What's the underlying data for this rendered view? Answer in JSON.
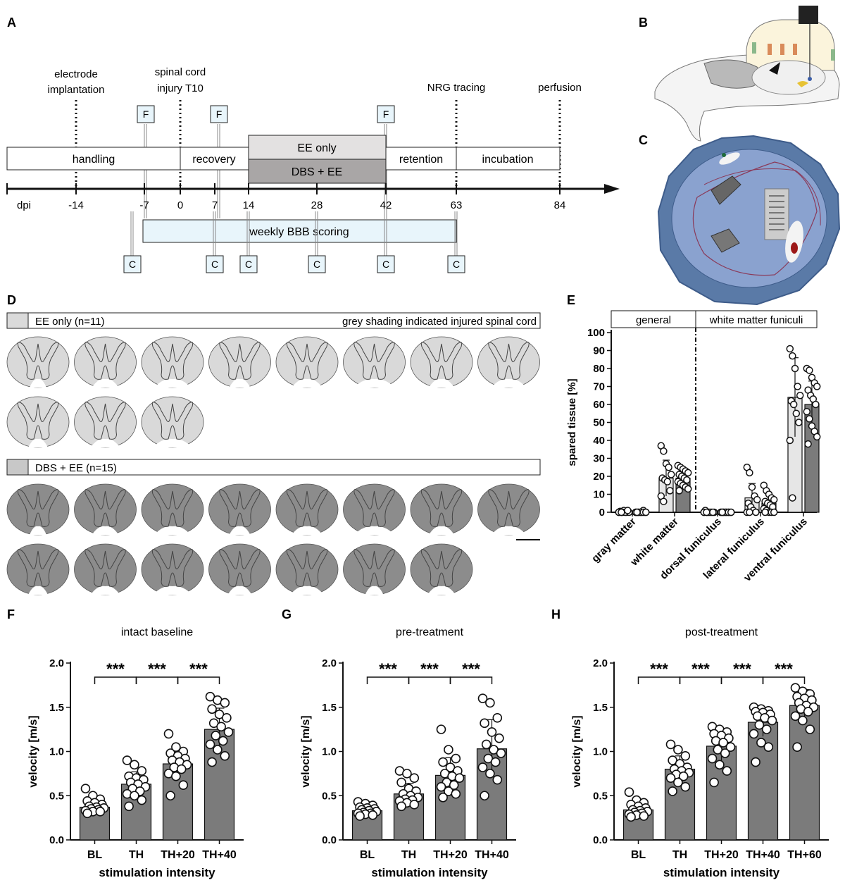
{
  "panel_labels": {
    "a": "A",
    "b": "B",
    "c": "C",
    "d": "D",
    "e": "E",
    "f": "F",
    "g": "G",
    "h": "H"
  },
  "colors": {
    "light_bar": "#e6e6e6",
    "dark_bar": "#7b7b7b",
    "timeline_blue": "#e8f5fb",
    "arena_blue": "#5a7aa7",
    "section_light": "#dadada",
    "section_dark": "#8a8a8a"
  },
  "timeline": {
    "events": [
      {
        "label_lines": [
          "electrode",
          "implantation"
        ],
        "day": -14
      },
      {
        "label_lines": [
          "spinal cord",
          "injury T10"
        ],
        "day": 0
      },
      {
        "label_lines": [
          "NRG tracing"
        ],
        "day": 63
      },
      {
        "label_lines": [
          "perfusion"
        ],
        "day": 84
      }
    ],
    "phases": {
      "handling": "handling",
      "recovery": "recovery",
      "ee_only": "EE only",
      "dbs_ee": "DBS + EE",
      "retention": "retention",
      "incubation": "incubation"
    },
    "axis_label": "dpi",
    "ticks": [
      "-14",
      "-7",
      "0",
      "7",
      "14",
      "28",
      "42",
      "63",
      "84"
    ],
    "f_marker": "F",
    "c_marker": "C",
    "bbb_label": "weekly BBB scoring"
  },
  "panel_d": {
    "group1": {
      "label": "EE only (n=11)",
      "note": "grey shading indicated injured spinal cord",
      "count": 11
    },
    "group2": {
      "label": "DBS + EE (n=15)",
      "count": 15
    }
  },
  "chart_data": [
    {
      "panel": "E",
      "type": "bar",
      "ylabel": "spared tissue [%]",
      "ylim": [
        0,
        100
      ],
      "yticks": [
        "0",
        "10",
        "20",
        "30",
        "40",
        "50",
        "60",
        "70",
        "80",
        "90",
        "100"
      ],
      "header_left": "general",
      "header_right": "white matter funiculi",
      "categories": [
        "gray matter",
        "white matter",
        "dorsal funiculus",
        "lateral funiculus",
        "ventral funiculus"
      ],
      "series": [
        {
          "values": [
            0.3,
            19,
            0.2,
            8,
            64
          ],
          "sd": [
            0.5,
            10,
            0.3,
            8,
            22
          ],
          "points": [
            [
              0,
              0,
              1,
              0,
              0,
              0.5,
              0,
              0,
              1,
              0,
              0
            ],
            [
              37,
              34,
              27,
              25,
              21,
              19,
              18,
              17,
              12,
              9,
              6
            ],
            [
              0,
              0,
              0,
              0,
              0,
              1,
              0,
              0,
              0,
              0,
              0
            ],
            [
              25,
              22,
              14,
              9,
              7,
              5,
              3,
              1,
              0,
              0,
              0
            ],
            [
              91,
              87,
              80,
              70,
              65,
              62,
              60,
              55,
              50,
              40,
              8
            ]
          ]
        },
        {
          "values": [
            0.3,
            19,
            0.2,
            5,
            60
          ],
          "sd": [
            0.5,
            4,
            0.3,
            5,
            13
          ],
          "points": [
            [
              0,
              0,
              0,
              1,
              0,
              0,
              0,
              0,
              0,
              0,
              0,
              0,
              0,
              0,
              0
            ],
            [
              26,
              25,
              24,
              23,
              22,
              21,
              20,
              19,
              18,
              17,
              16,
              15,
              14,
              13,
              12
            ],
            [
              0,
              0,
              0,
              0,
              0,
              0,
              0,
              0,
              0,
              0,
              0,
              0,
              0,
              0,
              0
            ],
            [
              15,
              12,
              10,
              8,
              7,
              6,
              5,
              4,
              3,
              2,
              1,
              0,
              0,
              0,
              0
            ],
            [
              80,
              79,
              75,
              72,
              70,
              68,
              65,
              63,
              60,
              56,
              52,
              48,
              45,
              42,
              38
            ]
          ]
        }
      ]
    },
    {
      "panel": "F",
      "title": "intact baseline",
      "type": "bar",
      "xlabel": "stimulation intensity",
      "ylabel": "velocity [m/s]",
      "ylim": [
        0,
        2.0
      ],
      "yticks": [
        "0.0",
        "0.5",
        "1.0",
        "1.5",
        "2.0"
      ],
      "categories": [
        "BL",
        "TH",
        "TH+20",
        "TH+40"
      ],
      "values": [
        0.37,
        0.63,
        0.86,
        1.25
      ],
      "sd": [
        0.07,
        0.14,
        0.15,
        0.24
      ],
      "points": [
        [
          0.58,
          0.5,
          0.46,
          0.44,
          0.42,
          0.4,
          0.38,
          0.37,
          0.36,
          0.35,
          0.34,
          0.33,
          0.32,
          0.32,
          0.3
        ],
        [
          0.9,
          0.85,
          0.78,
          0.72,
          0.7,
          0.68,
          0.65,
          0.63,
          0.6,
          0.58,
          0.55,
          0.52,
          0.5,
          0.45,
          0.38
        ],
        [
          1.2,
          1.05,
          1.0,
          0.98,
          0.95,
          0.92,
          0.9,
          0.88,
          0.85,
          0.82,
          0.8,
          0.75,
          0.72,
          0.62,
          0.5
        ],
        [
          1.62,
          1.58,
          1.55,
          1.48,
          1.42,
          1.38,
          1.32,
          1.28,
          1.22,
          1.18,
          1.12,
          1.08,
          1.02,
          0.95,
          0.88
        ]
      ],
      "significance": [
        {
          "from": 0,
          "to": 1,
          "label": "***"
        },
        {
          "from": 1,
          "to": 2,
          "label": "***"
        },
        {
          "from": 2,
          "to": 3,
          "label": "***"
        }
      ]
    },
    {
      "panel": "G",
      "title": "pre-treatment",
      "type": "bar",
      "xlabel": "stimulation intensity",
      "ylabel": "velocity [m/s]",
      "ylim": [
        0,
        2.0
      ],
      "yticks": [
        "0.0",
        "0.5",
        "1.0",
        "1.5",
        "2.0"
      ],
      "categories": [
        "BL",
        "TH",
        "TH+20",
        "TH+40"
      ],
      "values": [
        0.33,
        0.52,
        0.73,
        1.03
      ],
      "sd": [
        0.04,
        0.12,
        0.2,
        0.33
      ],
      "points": [
        [
          0.43,
          0.41,
          0.39,
          0.37,
          0.36,
          0.35,
          0.34,
          0.33,
          0.32,
          0.31,
          0.3,
          0.3,
          0.29,
          0.28,
          0.27
        ],
        [
          0.78,
          0.75,
          0.7,
          0.65,
          0.58,
          0.55,
          0.52,
          0.5,
          0.48,
          0.46,
          0.45,
          0.44,
          0.42,
          0.4,
          0.38
        ],
        [
          1.25,
          1.02,
          0.92,
          0.88,
          0.82,
          0.78,
          0.75,
          0.72,
          0.7,
          0.65,
          0.62,
          0.6,
          0.55,
          0.52,
          0.48
        ],
        [
          1.6,
          1.55,
          1.38,
          1.32,
          1.22,
          1.15,
          1.08,
          1.02,
          0.98,
          0.92,
          0.88,
          0.82,
          0.75,
          0.68,
          0.5
        ]
      ],
      "significance": [
        {
          "from": 0,
          "to": 1,
          "label": "***"
        },
        {
          "from": 1,
          "to": 2,
          "label": "***"
        },
        {
          "from": 2,
          "to": 3,
          "label": "***"
        }
      ]
    },
    {
      "panel": "H",
      "title": "post-treatment",
      "type": "bar",
      "xlabel": "stimulation intensity",
      "ylabel": "velocity [m/s]",
      "ylim": [
        0,
        2.0
      ],
      "yticks": [
        "0.0",
        "0.5",
        "1.0",
        "1.5",
        "2.0"
      ],
      "categories": [
        "BL",
        "TH",
        "TH+20",
        "TH+40",
        "TH+60"
      ],
      "values": [
        0.34,
        0.8,
        1.06,
        1.33,
        1.52
      ],
      "sd": [
        0.06,
        0.15,
        0.18,
        0.16,
        0.18
      ],
      "points": [
        [
          0.54,
          0.45,
          0.42,
          0.4,
          0.38,
          0.36,
          0.34,
          0.33,
          0.32,
          0.31,
          0.3,
          0.29,
          0.28,
          0.27,
          0.26
        ],
        [
          1.08,
          1.02,
          0.95,
          0.9,
          0.86,
          0.82,
          0.8,
          0.78,
          0.76,
          0.74,
          0.72,
          0.7,
          0.65,
          0.6,
          0.55
        ],
        [
          1.28,
          1.25,
          1.22,
          1.2,
          1.18,
          1.15,
          1.12,
          1.1,
          1.05,
          1.02,
          0.98,
          0.92,
          0.85,
          0.78,
          0.65
        ],
        [
          1.5,
          1.48,
          1.46,
          1.45,
          1.44,
          1.42,
          1.4,
          1.38,
          1.35,
          1.3,
          1.25,
          1.2,
          1.1,
          1.05,
          0.88
        ],
        [
          1.72,
          1.68,
          1.65,
          1.62,
          1.6,
          1.58,
          1.55,
          1.52,
          1.5,
          1.48,
          1.45,
          1.4,
          1.35,
          1.25,
          1.05
        ]
      ],
      "significance": [
        {
          "from": 0,
          "to": 1,
          "label": "***"
        },
        {
          "from": 1,
          "to": 2,
          "label": "***"
        },
        {
          "from": 2,
          "to": 3,
          "label": "***"
        },
        {
          "from": 3,
          "to": 4,
          "label": "***"
        }
      ]
    }
  ]
}
